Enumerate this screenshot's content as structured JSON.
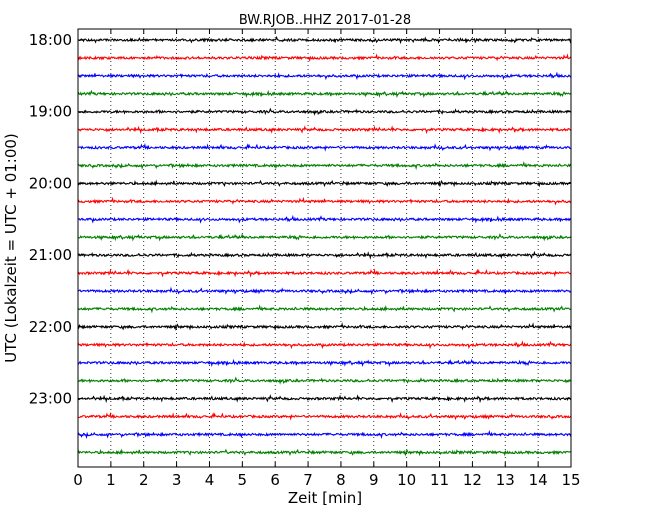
{
  "chart_data": {
    "type": "line",
    "title": "BW.RJOB..HHZ 2017-01-28",
    "xlabel": "Zeit  [min]",
    "ylabel": "UTC (Lokalzeit = UTC + 01:00)",
    "xlim": [
      0,
      15
    ],
    "x_ticks": [
      "0",
      "1",
      "2",
      "3",
      "4",
      "5",
      "6",
      "7",
      "8",
      "9",
      "10",
      "11",
      "12",
      "13",
      "14",
      "15"
    ],
    "y_ticks": [
      "18:00",
      "19:00",
      "20:00",
      "21:00",
      "22:00",
      "23:00"
    ],
    "trace_interval_min": 15,
    "start_time": "18:00",
    "trace_count": 24,
    "trace_colors": [
      "#000000",
      "#ff0000",
      "#0000ff",
      "#007f00"
    ],
    "grid": "vertical-dotted",
    "series": [
      {
        "start": "18:00",
        "color": "#000000"
      },
      {
        "start": "18:15",
        "color": "#ff0000"
      },
      {
        "start": "18:30",
        "color": "#0000ff"
      },
      {
        "start": "18:45",
        "color": "#007f00"
      },
      {
        "start": "19:00",
        "color": "#000000"
      },
      {
        "start": "19:15",
        "color": "#ff0000"
      },
      {
        "start": "19:30",
        "color": "#0000ff"
      },
      {
        "start": "19:45",
        "color": "#007f00"
      },
      {
        "start": "20:00",
        "color": "#000000"
      },
      {
        "start": "20:15",
        "color": "#ff0000"
      },
      {
        "start": "20:30",
        "color": "#0000ff"
      },
      {
        "start": "20:45",
        "color": "#007f00"
      },
      {
        "start": "21:00",
        "color": "#000000"
      },
      {
        "start": "21:15",
        "color": "#ff0000"
      },
      {
        "start": "21:30",
        "color": "#0000ff"
      },
      {
        "start": "21:45",
        "color": "#007f00"
      },
      {
        "start": "22:00",
        "color": "#000000"
      },
      {
        "start": "22:15",
        "color": "#ff0000"
      },
      {
        "start": "22:30",
        "color": "#0000ff"
      },
      {
        "start": "22:45",
        "color": "#007f00"
      },
      {
        "start": "23:00",
        "color": "#000000"
      },
      {
        "start": "23:15",
        "color": "#ff0000"
      },
      {
        "start": "23:30",
        "color": "#0000ff"
      },
      {
        "start": "23:45",
        "color": "#007f00"
      }
    ]
  }
}
